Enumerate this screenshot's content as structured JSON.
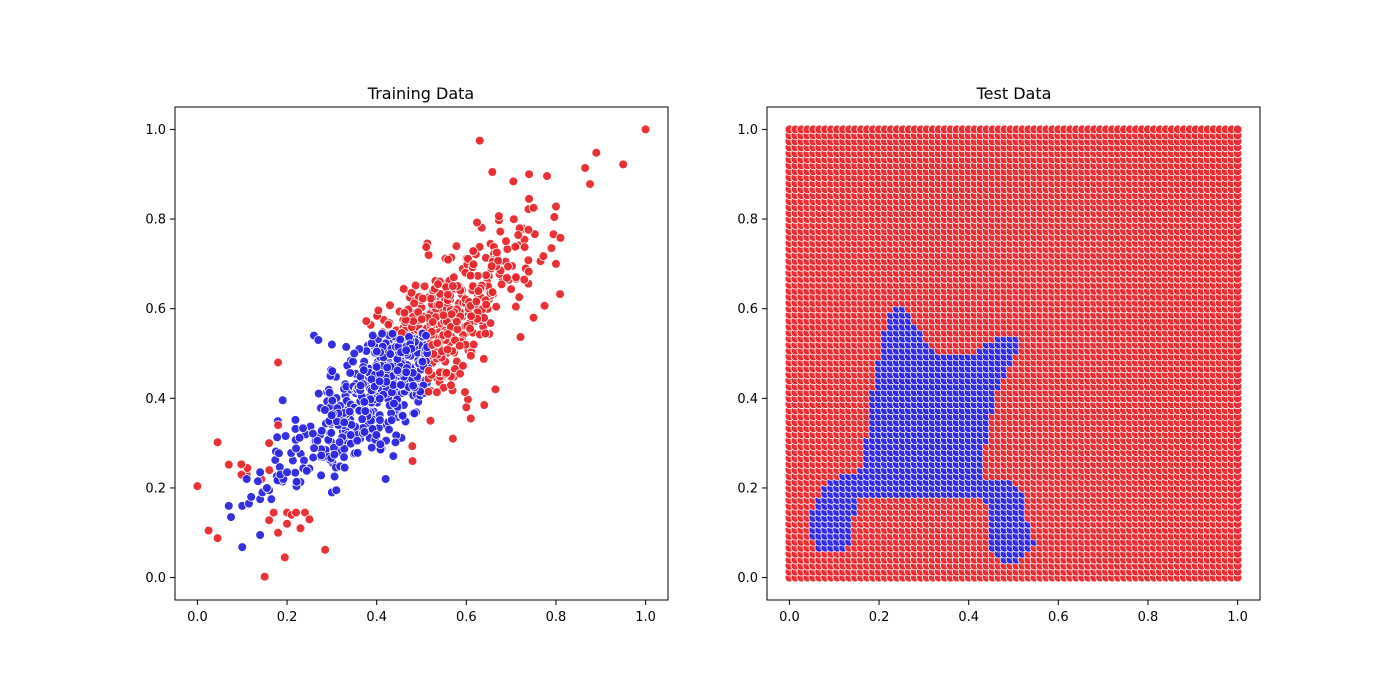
{
  "chart_data": [
    {
      "type": "scatter",
      "title": "Training Data",
      "xlim": [
        -0.05,
        1.05
      ],
      "ylim": [
        -0.05,
        1.05
      ],
      "xticks": [
        "0.0",
        "0.2",
        "0.4",
        "0.6",
        "0.8",
        "1.0"
      ],
      "yticks": [
        "0.0",
        "0.2",
        "0.4",
        "0.6",
        "0.8",
        "1.0"
      ],
      "grid": false,
      "class_colors": {
        "class_0": "#e8262b",
        "class_1": "#2a24e0"
      },
      "description_of_distribution": {
        "approx_points": 1000,
        "trend": "positive linear correlation, y ≈ x centered near (0.45, 0.48)",
        "class_1_region": "x between 0.1 and 0.5 and y between 0.2 and 0.55 (core of cloud)"
      },
      "series": [
        {
          "key": "red",
          "color": "#e8262b",
          "points": [
            [
              1.0,
              1.0
            ],
            [
              0.63,
              0.975
            ],
            [
              0.89,
              0.948
            ],
            [
              0.95,
              0.922
            ],
            [
              0.865,
              0.914
            ],
            [
              0.658,
              0.905
            ],
            [
              0.74,
              0.9
            ],
            [
              0.78,
              0.896
            ],
            [
              0.876,
              0.878
            ],
            [
              0.705,
              0.884
            ],
            [
              0.0,
              0.204
            ],
            [
              0.045,
              0.302
            ],
            [
              0.07,
              0.252
            ],
            [
              0.025,
              0.105
            ],
            [
              0.045,
              0.088
            ],
            [
              0.15,
              0.002
            ],
            [
              0.17,
              0.145
            ],
            [
              0.16,
              0.128
            ],
            [
              0.18,
              0.1
            ],
            [
              0.195,
              0.045
            ],
            [
              0.2,
              0.145
            ],
            [
              0.2,
              0.12
            ],
            [
              0.21,
              0.14
            ],
            [
              0.22,
              0.145
            ],
            [
              0.23,
              0.11
            ],
            [
              0.24,
              0.145
            ],
            [
              0.25,
              0.13
            ],
            [
              0.285,
              0.062
            ],
            [
              0.16,
              0.3
            ],
            [
              0.18,
              0.48
            ],
            [
              0.18,
              0.34
            ],
            [
              0.48,
              0.26
            ],
            [
              0.52,
              0.35
            ],
            [
              0.57,
              0.31
            ],
            [
              0.6,
              0.38
            ],
            [
              0.61,
              0.355
            ],
            [
              0.64,
              0.385
            ],
            [
              0.665,
              0.42
            ],
            [
              0.75,
              0.58
            ],
            [
              0.8,
              0.7
            ],
            [
              0.81,
              0.758
            ],
            [
              0.8,
              0.828
            ],
            [
              0.79,
              0.735
            ],
            [
              0.75,
              0.825
            ],
            [
              0.74,
              0.845
            ]
          ]
        },
        {
          "key": "blue",
          "color": "#2a24e0",
          "points": [
            [
              0.1,
              0.068
            ],
            [
              0.14,
              0.095
            ],
            [
              0.075,
              0.135
            ],
            [
              0.07,
              0.16
            ],
            [
              0.1,
              0.16
            ],
            [
              0.115,
              0.165
            ],
            [
              0.12,
              0.18
            ],
            [
              0.14,
              0.175
            ],
            [
              0.145,
              0.19
            ],
            [
              0.16,
              0.195
            ],
            [
              0.165,
              0.175
            ],
            [
              0.11,
              0.22
            ],
            [
              0.135,
              0.215
            ],
            [
              0.14,
              0.235
            ],
            [
              0.155,
              0.2
            ],
            [
              0.185,
              0.23
            ],
            [
              0.2,
              0.235
            ],
            [
              0.3,
              0.19
            ],
            [
              0.31,
              0.195
            ],
            [
              0.42,
              0.22
            ],
            [
              0.26,
              0.54
            ],
            [
              0.27,
              0.53
            ],
            [
              0.3,
              0.52
            ],
            [
              0.35,
              0.5
            ],
            [
              0.4,
              0.47
            ]
          ]
        }
      ]
    },
    {
      "type": "scatter",
      "title": "Test Data",
      "xlim": [
        -0.05,
        1.05
      ],
      "ylim": [
        -0.05,
        1.05
      ],
      "xticks": [
        "0.0",
        "0.2",
        "0.4",
        "0.6",
        "0.8",
        "1.0"
      ],
      "yticks": [
        "0.0",
        "0.2",
        "0.4",
        "0.6",
        "0.8",
        "1.0"
      ],
      "grid": false,
      "class_colors": {
        "class_0": "#e8262b",
        "class_1": "#2a24e0"
      },
      "grid_points": {
        "range": [
          0.0,
          1.0
        ],
        "count_per_axis": 76
      },
      "class_1_region_polygon": [
        [
          0.05,
          0.13
        ],
        [
          0.055,
          0.165
        ],
        [
          0.075,
          0.2
        ],
        [
          0.1,
          0.225
        ],
        [
          0.15,
          0.232
        ],
        [
          0.16,
          0.25
        ],
        [
          0.18,
          0.335
        ],
        [
          0.185,
          0.41
        ],
        [
          0.2,
          0.49
        ],
        [
          0.22,
          0.58
        ],
        [
          0.24,
          0.61
        ],
        [
          0.27,
          0.59
        ],
        [
          0.3,
          0.535
        ],
        [
          0.33,
          0.5
        ],
        [
          0.365,
          0.493
        ],
        [
          0.41,
          0.502
        ],
        [
          0.44,
          0.52
        ],
        [
          0.48,
          0.54
        ],
        [
          0.52,
          0.54
        ],
        [
          0.52,
          0.515
        ],
        [
          0.49,
          0.47
        ],
        [
          0.46,
          0.4
        ],
        [
          0.44,
          0.3
        ],
        [
          0.43,
          0.255
        ],
        [
          0.44,
          0.225
        ],
        [
          0.5,
          0.215
        ],
        [
          0.52,
          0.195
        ],
        [
          0.53,
          0.15
        ],
        [
          0.54,
          0.1
        ],
        [
          0.55,
          0.085
        ],
        [
          0.53,
          0.05
        ],
        [
          0.51,
          0.038
        ],
        [
          0.48,
          0.04
        ],
        [
          0.455,
          0.05
        ],
        [
          0.445,
          0.08
        ],
        [
          0.445,
          0.16
        ],
        [
          0.42,
          0.18
        ],
        [
          0.15,
          0.18
        ],
        [
          0.145,
          0.125
        ],
        [
          0.13,
          0.06
        ],
        [
          0.1,
          0.055
        ],
        [
          0.07,
          0.055
        ],
        [
          0.055,
          0.075
        ]
      ]
    }
  ]
}
